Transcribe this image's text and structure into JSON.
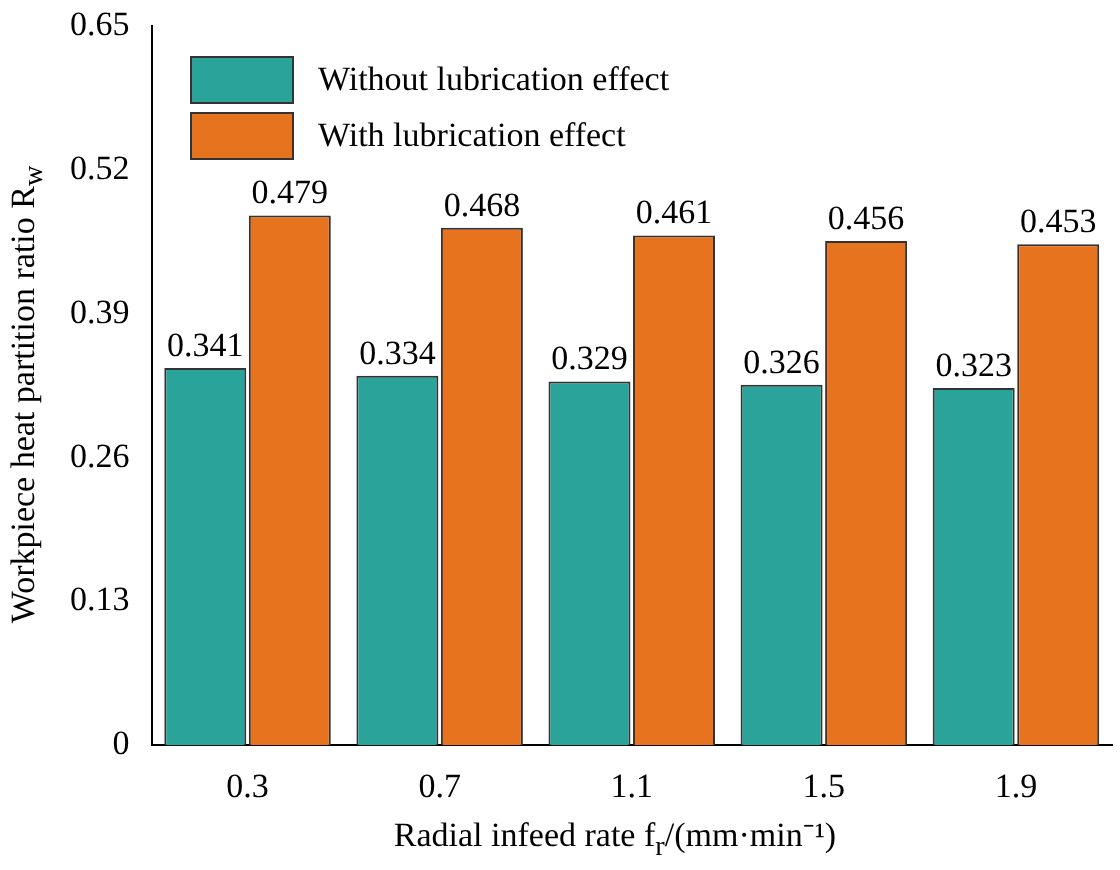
{
  "chart_data": {
    "type": "bar",
    "xlabel": "Radial infeed rate f$_{r}$/(mm·min⁻¹)",
    "ylabel": "Workpiece heat partition ratio R$_{w}$",
    "categories": [
      "0.3",
      "0.7",
      "1.1",
      "1.5",
      "1.9"
    ],
    "series": [
      {
        "name": "Without lubrication effect",
        "color": "#2aa39a",
        "values": [
          0.341,
          0.334,
          0.329,
          0.326,
          0.323
        ]
      },
      {
        "name": "With lubrication effect",
        "color": "#e8731e",
        "values": [
          0.479,
          0.468,
          0.461,
          0.456,
          0.453
        ]
      }
    ],
    "ylim": [
      0,
      0.65
    ],
    "yticks": [
      0,
      0.13,
      0.26,
      0.39,
      0.52,
      0.65
    ],
    "data_labels": true,
    "legend": "top left",
    "grid": false
  }
}
